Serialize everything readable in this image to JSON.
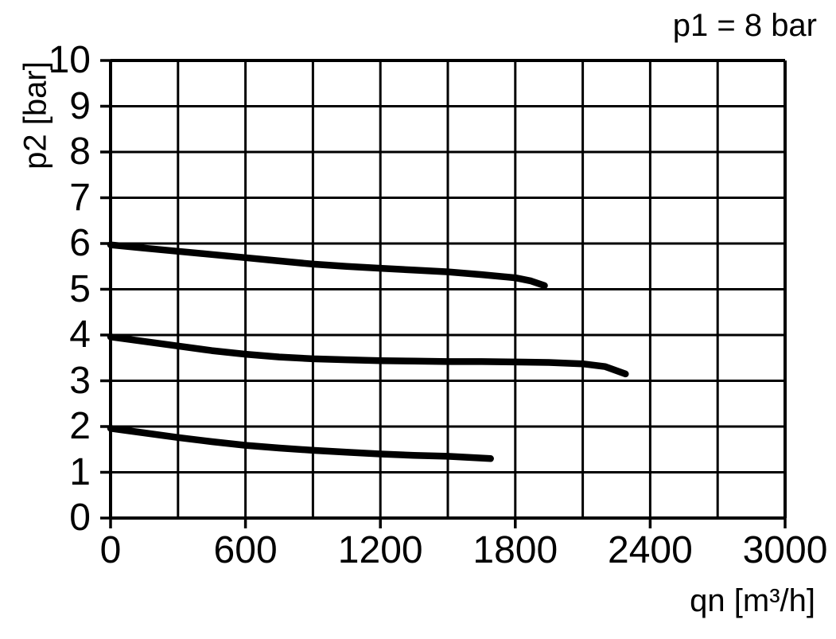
{
  "chart_data": {
    "type": "line",
    "title": "p1 = 8 bar",
    "xlabel": "qn [m³/h]",
    "ylabel": "p2 [bar]",
    "xlim": [
      0,
      3000
    ],
    "ylim": [
      0,
      10
    ],
    "x_major_ticks": [
      0,
      600,
      1200,
      1800,
      2400,
      3000
    ],
    "x_grid_step": 300,
    "y_ticks": [
      0,
      1,
      2,
      3,
      4,
      5,
      6,
      7,
      8,
      9,
      10
    ],
    "grid": true,
    "legend": "none",
    "line_color": "#000000",
    "grid_color": "#000000",
    "background_color": "#ffffff",
    "series": [
      {
        "id": "curve-upper",
        "points": [
          [
            0,
            5.97
          ],
          [
            150,
            5.9
          ],
          [
            300,
            5.83
          ],
          [
            450,
            5.76
          ],
          [
            600,
            5.69
          ],
          [
            750,
            5.62
          ],
          [
            900,
            5.55
          ],
          [
            1050,
            5.5
          ],
          [
            1200,
            5.46
          ],
          [
            1350,
            5.42
          ],
          [
            1500,
            5.38
          ],
          [
            1650,
            5.32
          ],
          [
            1800,
            5.25
          ],
          [
            1870,
            5.18
          ],
          [
            1930,
            5.08
          ]
        ]
      },
      {
        "id": "curve-middle",
        "points": [
          [
            0,
            3.96
          ],
          [
            150,
            3.86
          ],
          [
            300,
            3.76
          ],
          [
            450,
            3.66
          ],
          [
            600,
            3.58
          ],
          [
            750,
            3.52
          ],
          [
            900,
            3.48
          ],
          [
            1050,
            3.46
          ],
          [
            1200,
            3.44
          ],
          [
            1350,
            3.43
          ],
          [
            1500,
            3.42
          ],
          [
            1650,
            3.42
          ],
          [
            1800,
            3.41
          ],
          [
            1950,
            3.4
          ],
          [
            2100,
            3.37
          ],
          [
            2200,
            3.31
          ],
          [
            2290,
            3.15
          ]
        ]
      },
      {
        "id": "curve-lower",
        "points": [
          [
            0,
            1.96
          ],
          [
            150,
            1.86
          ],
          [
            300,
            1.76
          ],
          [
            450,
            1.67
          ],
          [
            600,
            1.59
          ],
          [
            750,
            1.53
          ],
          [
            900,
            1.48
          ],
          [
            1050,
            1.44
          ],
          [
            1200,
            1.4
          ],
          [
            1350,
            1.37
          ],
          [
            1500,
            1.35
          ],
          [
            1690,
            1.3
          ]
        ]
      }
    ]
  }
}
